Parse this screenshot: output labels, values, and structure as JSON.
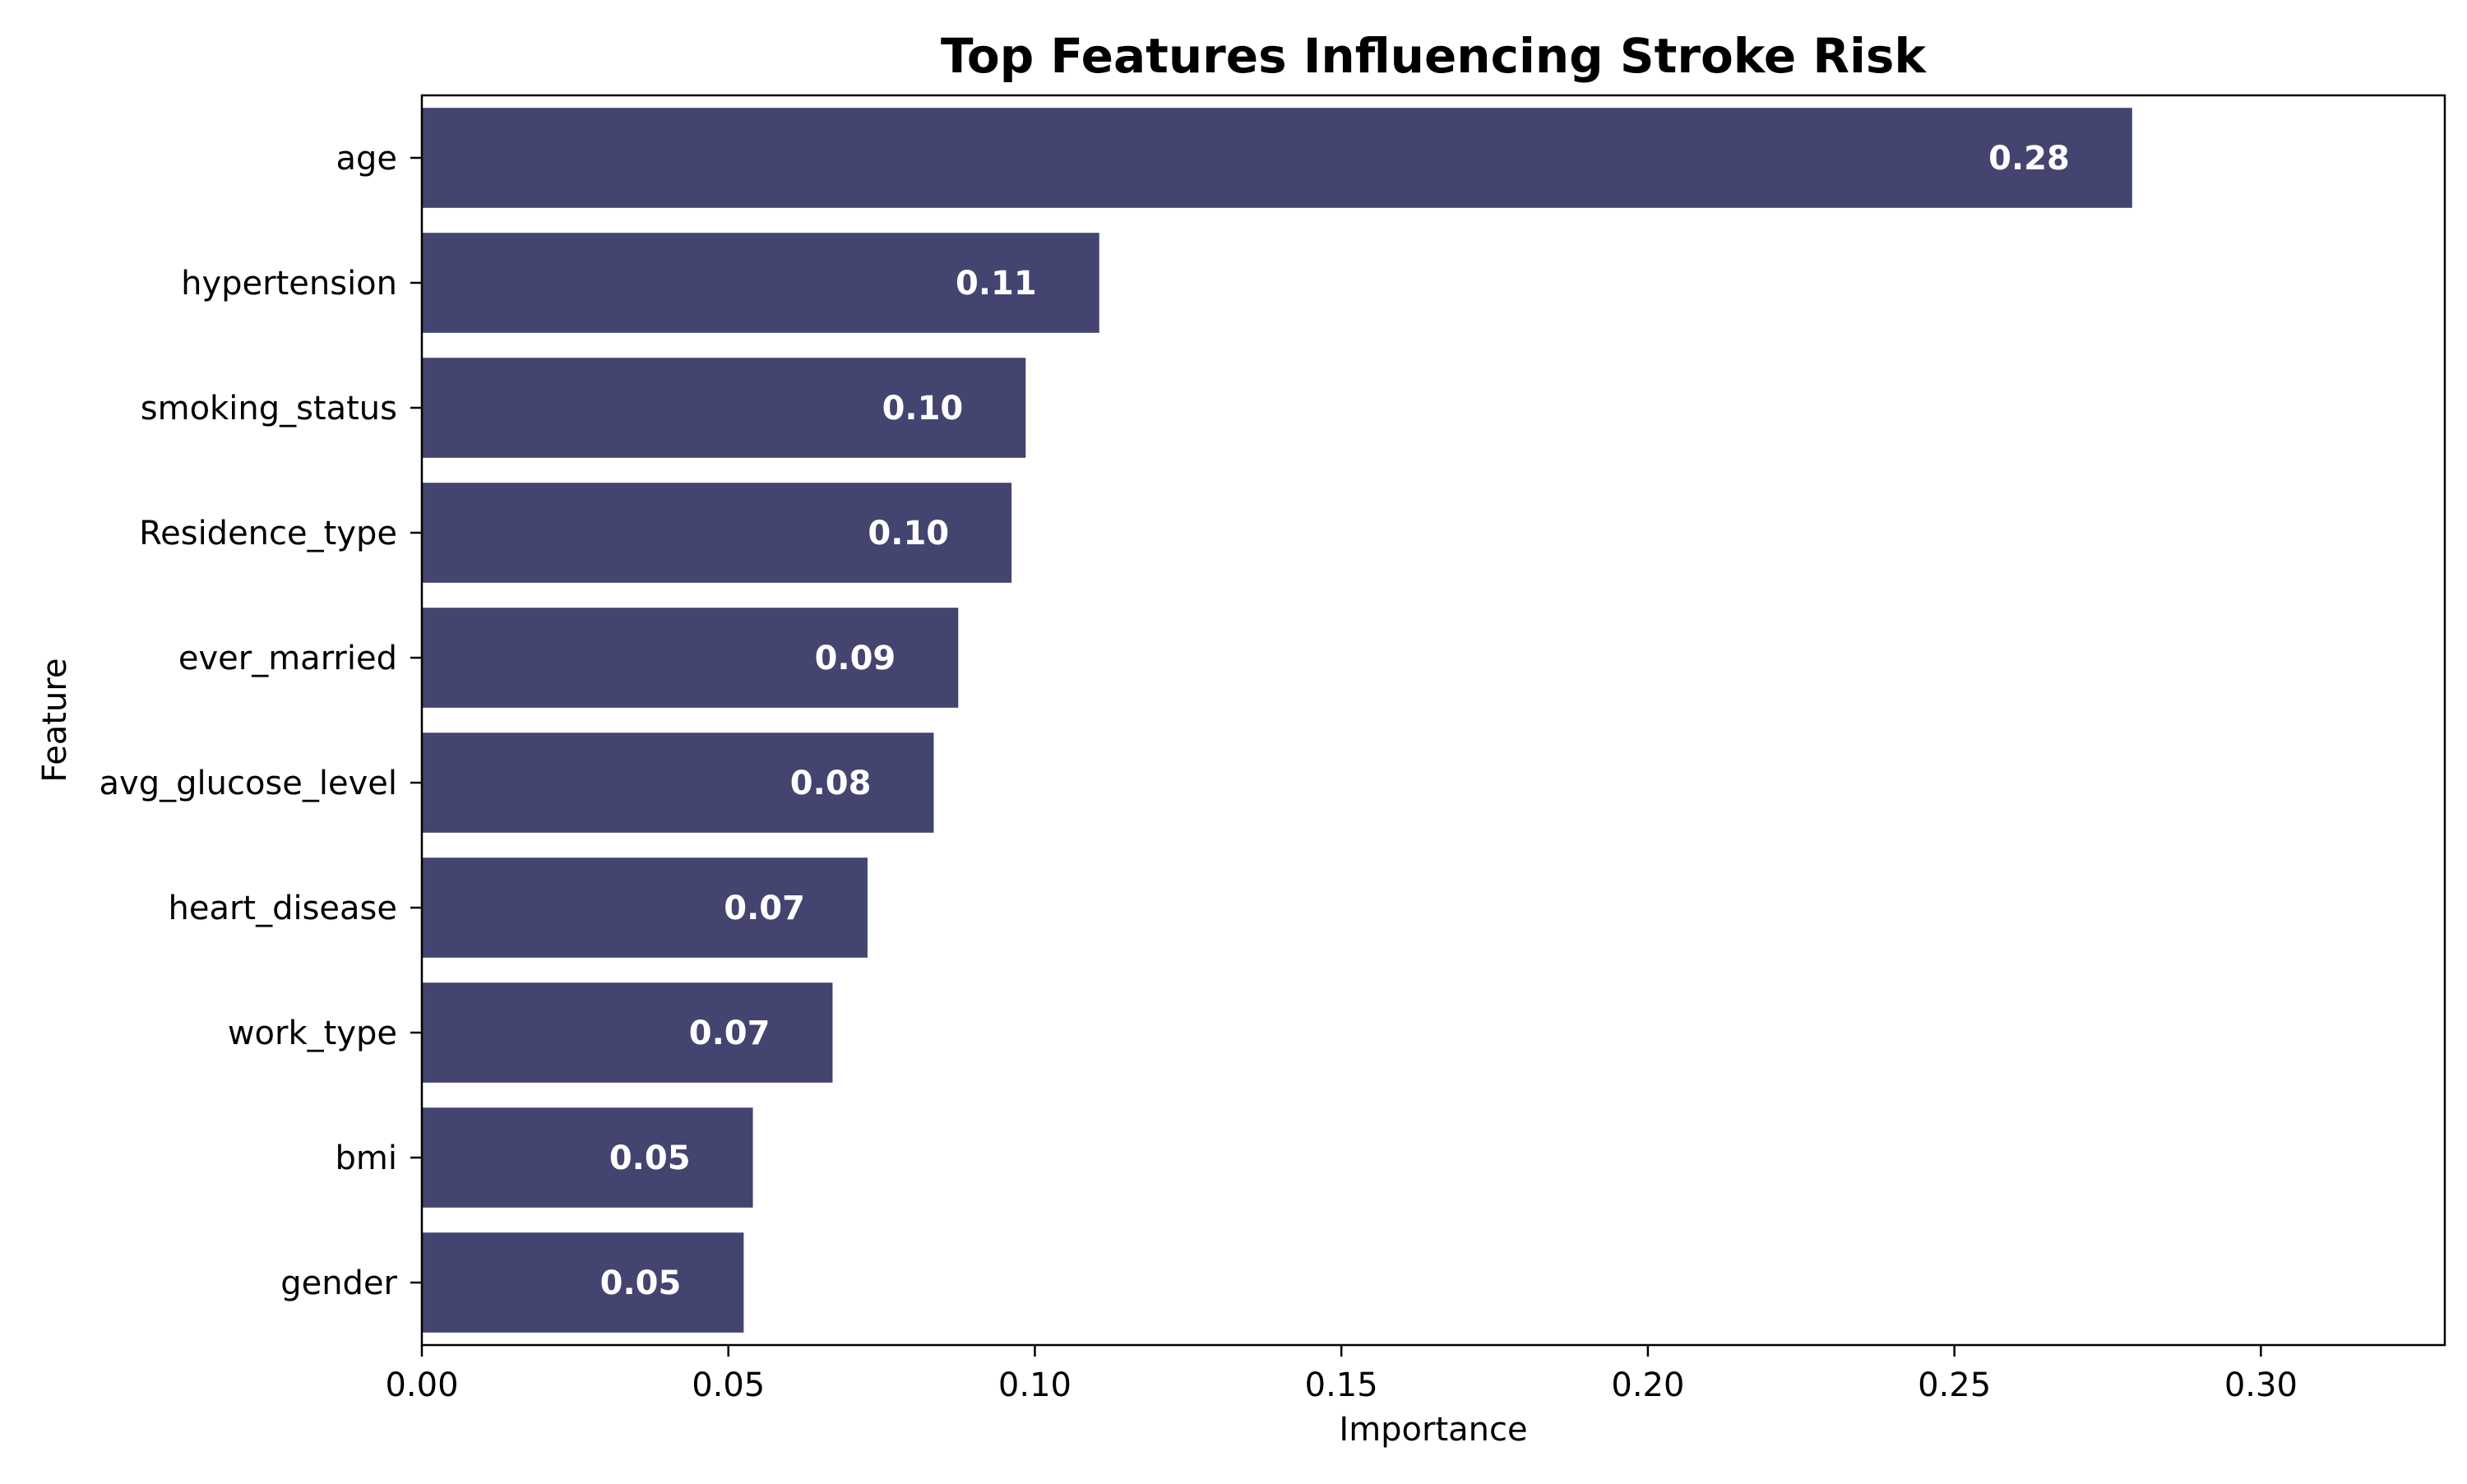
{
  "chart_data": {
    "type": "bar",
    "orientation": "horizontal",
    "title": "Top Features Influencing Stroke Risk",
    "xlabel": "Importance",
    "ylabel": "Feature",
    "categories": [
      "age",
      "hypertension",
      "smoking_status",
      "Residence_type",
      "ever_married",
      "avg_glucose_level",
      "heart_disease",
      "work_type",
      "bmi",
      "gender"
    ],
    "values": [
      0.279,
      0.1105,
      0.0985,
      0.0962,
      0.0875,
      0.0835,
      0.0727,
      0.067,
      0.054,
      0.0525
    ],
    "data_labels": [
      "0.28",
      "0.11",
      "0.10",
      "0.10",
      "0.09",
      "0.08",
      "0.07",
      "0.07",
      "0.05",
      "0.05"
    ],
    "xlim": [
      0,
      0.33
    ],
    "xticks": [
      0.0,
      0.05,
      0.1,
      0.15,
      0.2,
      0.25,
      0.3
    ],
    "xtick_labels": [
      "0.00",
      "0.05",
      "0.10",
      "0.15",
      "0.20",
      "0.25",
      "0.30"
    ],
    "bar_color": "#43446f",
    "label_color": "#ffffff",
    "grid": false,
    "legend": "none"
  }
}
